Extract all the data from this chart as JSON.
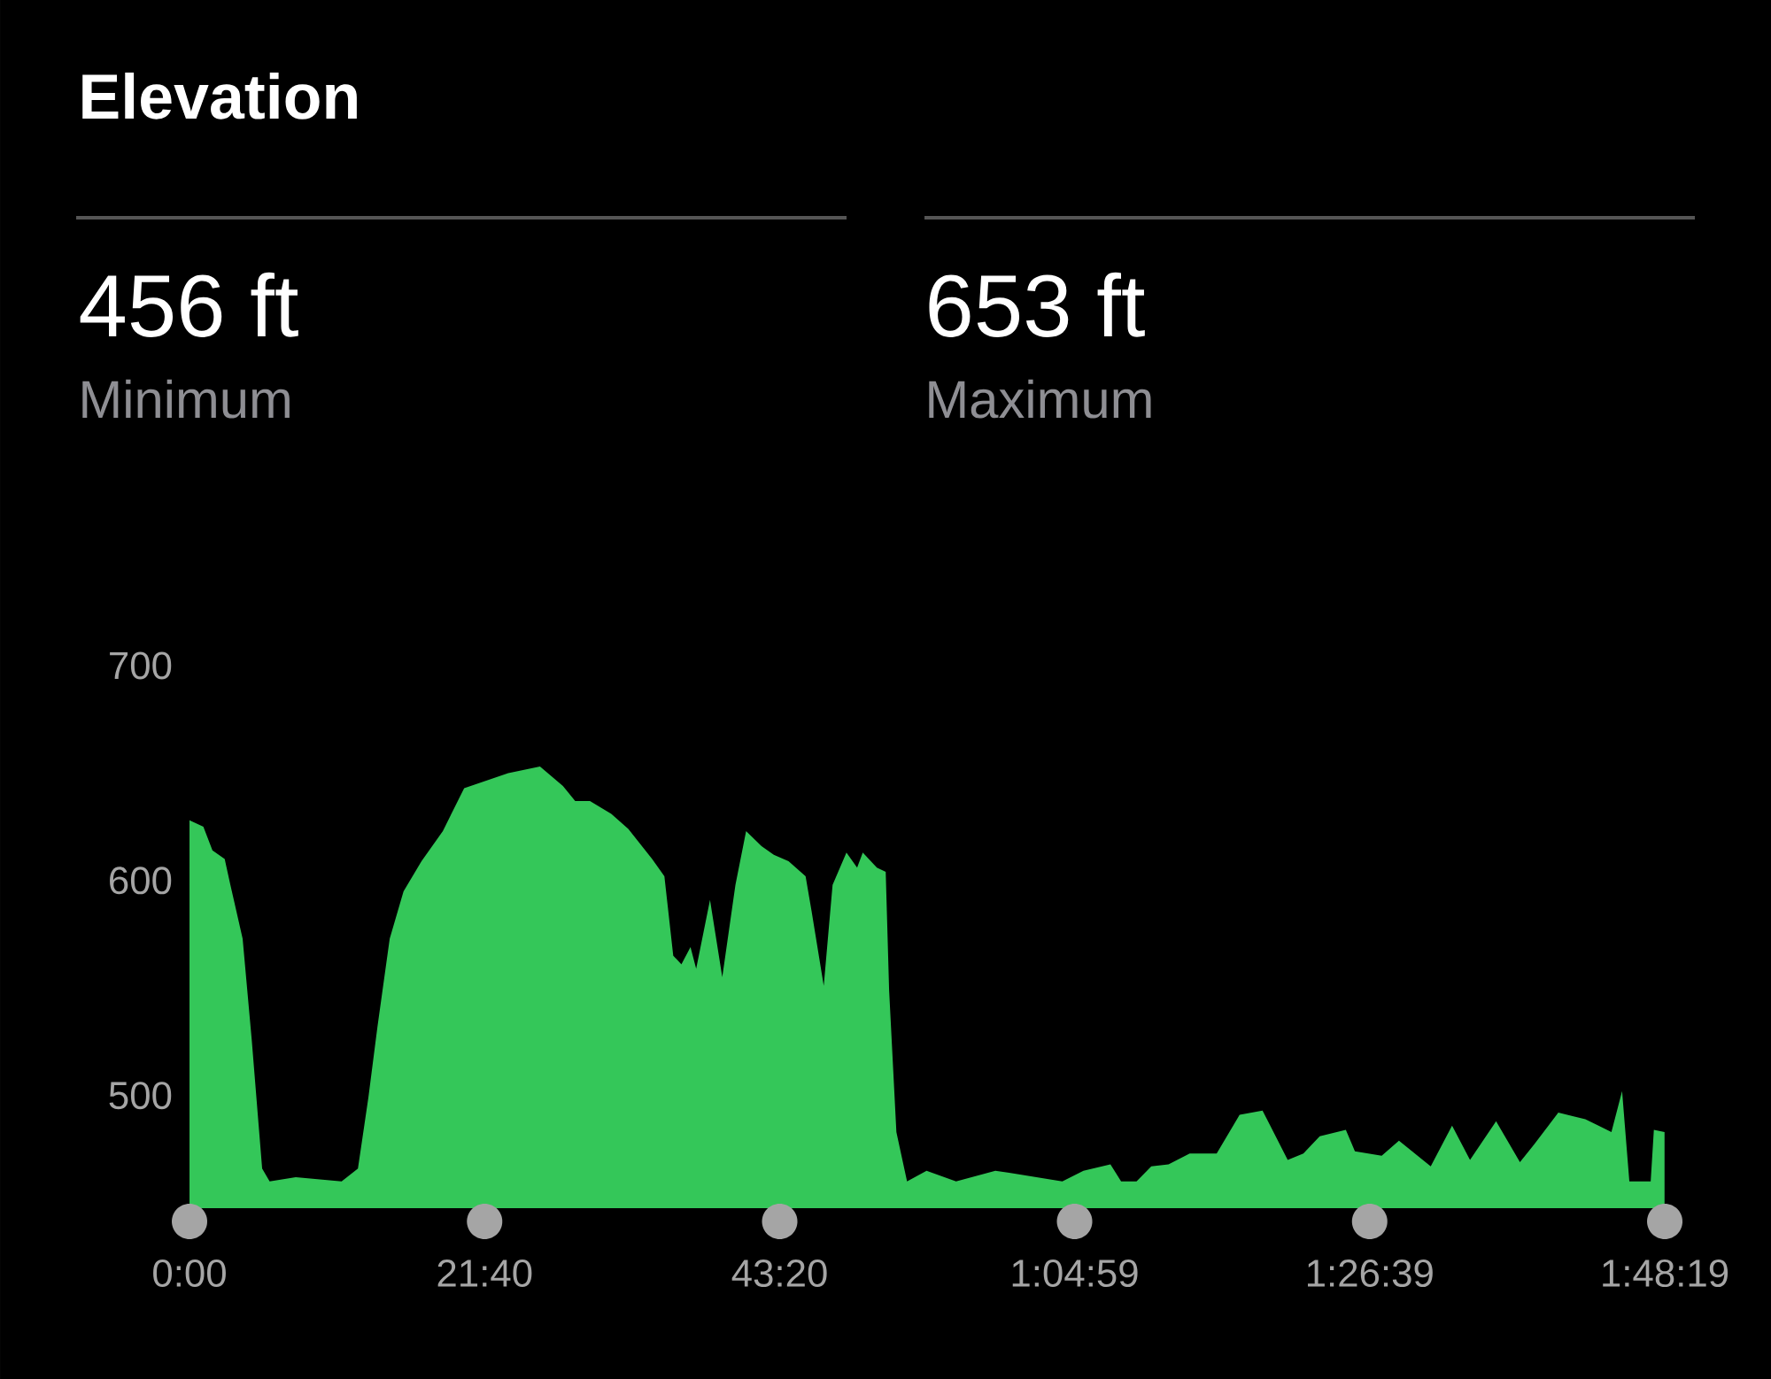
{
  "chart_data": {
    "type": "area",
    "title": "Elevation",
    "annotations": [
      "456 ft",
      "Minimum",
      "653 ft",
      "Maximum"
    ],
    "x": [
      0,
      61,
      101,
      155,
      180,
      234,
      274,
      320,
      353,
      468,
      670,
      742,
      788,
      828,
      882,
      943,
      1022,
      1116,
      1210,
      1404,
      1544,
      1645,
      1699,
      1764,
      1858,
      1933,
      2038,
      2092,
      2131,
      2167,
      2207,
      2232,
      2293,
      2347,
      2405,
      2452,
      2520,
      2574,
      2639,
      2714,
      2740,
      2794,
      2833,
      2894,
      2941,
      2966,
      3028,
      3067,
      3082,
      3114,
      3161,
      3247,
      3377,
      3550,
      3611,
      3845,
      3938,
      4057,
      4104,
      4172,
      4237,
      4313,
      4406,
      4525,
      4626,
      4727,
      4838,
      4907,
      4979,
      5094,
      5134,
      5252,
      5328,
      5468,
      5562,
      5641,
      5756,
      5861,
      5922,
      6030,
      6149,
      6264,
      6311,
      6343,
      6437,
      6451,
      6498
    ],
    "values": [
      628,
      625,
      614,
      610,
      598,
      573,
      526,
      466,
      460,
      462,
      460,
      466,
      499,
      532,
      573,
      595,
      609,
      623,
      643,
      650,
      653,
      644,
      637,
      637,
      631,
      624,
      610,
      602,
      565,
      561,
      569,
      559,
      591,
      555,
      598,
      623,
      616,
      612,
      609,
      602,
      586,
      551,
      598,
      613,
      606,
      613,
      606,
      604,
      549,
      483,
      460,
      465,
      460,
      465,
      464,
      460,
      465,
      468,
      460,
      460,
      467,
      468,
      473,
      473,
      491,
      493,
      470,
      473,
      481,
      484,
      474,
      472,
      479,
      467,
      486,
      470,
      488,
      469,
      477,
      492,
      489,
      483,
      502,
      460,
      460,
      484,
      483
    ],
    "color": "#34c759",
    "xlim": [
      0,
      6499
    ],
    "ylim": [
      448,
      700
    ],
    "xticks": [
      {
        "value": 0,
        "label": "0:00"
      },
      {
        "value": 1300,
        "label": "21:40"
      },
      {
        "value": 2600,
        "label": "43:20"
      },
      {
        "value": 3899,
        "label": "1:04:59"
      },
      {
        "value": 5199,
        "label": "1:26:39"
      },
      {
        "value": 6499,
        "label": "1:48:19"
      }
    ],
    "yticks": [
      500,
      600,
      700
    ]
  }
}
